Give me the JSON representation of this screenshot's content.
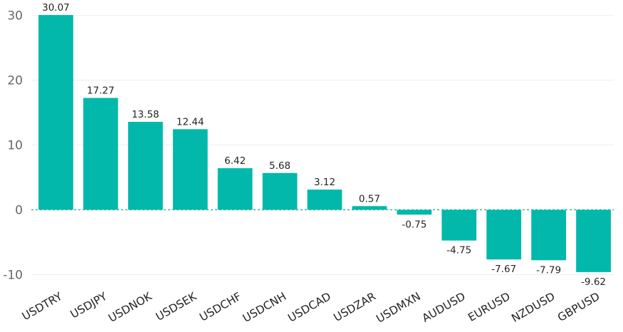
{
  "chart_data": {
    "type": "bar",
    "categories": [
      "USDTRY",
      "USDJPY",
      "USDNOK",
      "USDSEK",
      "USDCHF",
      "USDCNH",
      "USDCAD",
      "USDZAR",
      "USDMXN",
      "AUDUSD",
      "EURUSD",
      "NZDUSD",
      "GBPUSD"
    ],
    "values": [
      30.07,
      17.27,
      13.58,
      12.44,
      6.42,
      5.68,
      3.12,
      0.57,
      -0.75,
      -4.75,
      -7.67,
      -7.79,
      -9.62
    ],
    "data_labels": [
      "30.07",
      "17.27",
      "13.58",
      "12.44",
      "6.42",
      "5.68",
      "3.12",
      "0.57",
      "-0.75",
      "-4.75",
      "-7.67",
      "-7.79",
      "-9.62"
    ],
    "yticks": [
      30,
      20,
      10,
      0,
      -10
    ],
    "ylim": [
      -12.6,
      31.4
    ],
    "title": "",
    "xlabel": "",
    "ylabel": "",
    "grid": true,
    "bar_color": "#01b8aa",
    "zero_line_color": "#1ab8a3"
  }
}
